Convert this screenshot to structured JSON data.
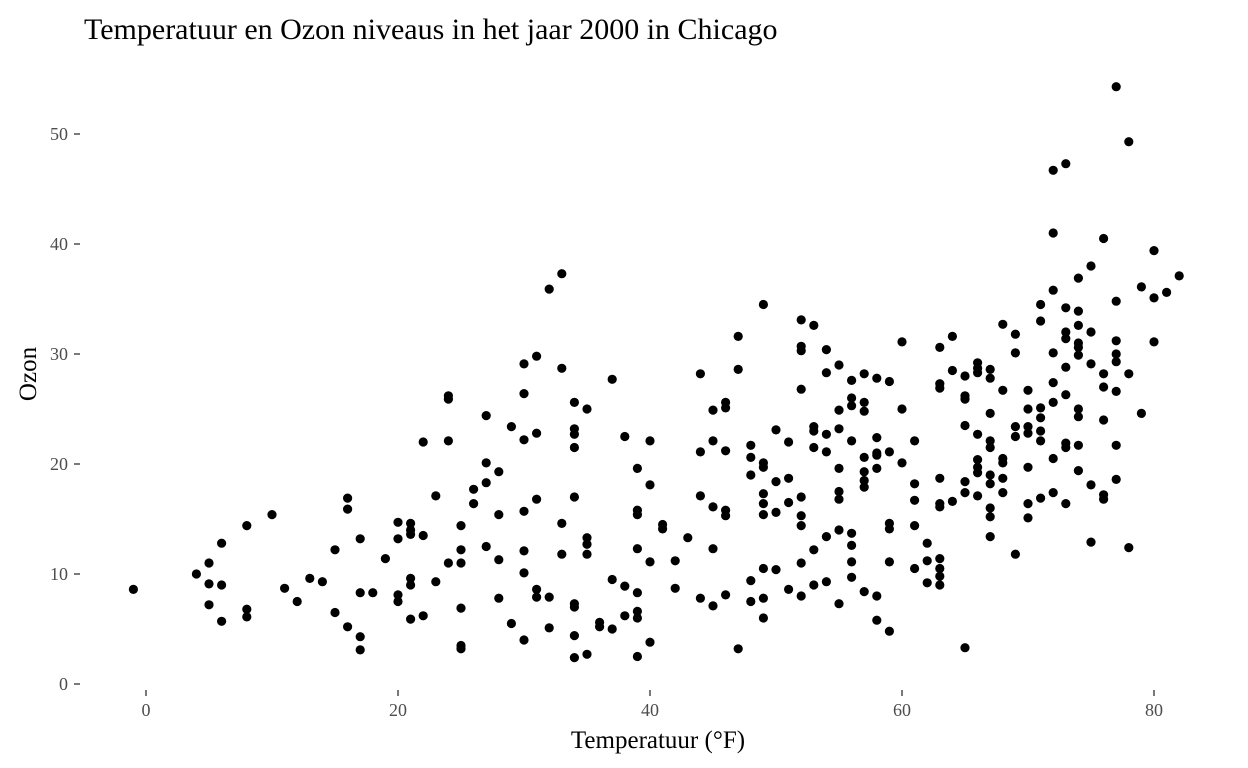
{
  "chart_data": {
    "type": "scatter",
    "title": "Temperatuur en Ozon niveaus in het jaar 2000 in Chicago",
    "xlabel": "Temperatuur (°F)",
    "ylabel": "Ozon",
    "xlim": [
      -6,
      84
    ],
    "ylim": [
      0,
      55
    ],
    "x_ticks": [
      0,
      20,
      40,
      60,
      80
    ],
    "y_ticks": [
      0,
      10,
      20,
      30,
      40,
      50
    ],
    "grid": false,
    "point_color": "#000000",
    "points": [
      {
        "x": -1,
        "y": 8.6
      },
      {
        "x": 4,
        "y": 10.0
      },
      {
        "x": 5,
        "y": 11.0
      },
      {
        "x": 5,
        "y": 9.1
      },
      {
        "x": 5,
        "y": 7.2
      },
      {
        "x": 6,
        "y": 12.8
      },
      {
        "x": 6,
        "y": 9.0
      },
      {
        "x": 6,
        "y": 5.7
      },
      {
        "x": 8,
        "y": 14.4
      },
      {
        "x": 8,
        "y": 6.8
      },
      {
        "x": 8,
        "y": 6.1
      },
      {
        "x": 10,
        "y": 15.4
      },
      {
        "x": 11,
        "y": 8.7
      },
      {
        "x": 12,
        "y": 7.5
      },
      {
        "x": 13,
        "y": 9.6
      },
      {
        "x": 14,
        "y": 9.3
      },
      {
        "x": 15,
        "y": 12.2
      },
      {
        "x": 15,
        "y": 6.5
      },
      {
        "x": 16,
        "y": 16.9
      },
      {
        "x": 16,
        "y": 15.9
      },
      {
        "x": 16,
        "y": 5.2
      },
      {
        "x": 17,
        "y": 13.2
      },
      {
        "x": 17,
        "y": 8.3
      },
      {
        "x": 17,
        "y": 4.3
      },
      {
        "x": 17,
        "y": 3.1
      },
      {
        "x": 18,
        "y": 8.3
      },
      {
        "x": 19,
        "y": 11.4
      },
      {
        "x": 20,
        "y": 14.7
      },
      {
        "x": 20,
        "y": 13.2
      },
      {
        "x": 20,
        "y": 8.1
      },
      {
        "x": 20,
        "y": 7.5
      },
      {
        "x": 21,
        "y": 14.6
      },
      {
        "x": 21,
        "y": 14.0
      },
      {
        "x": 21,
        "y": 13.6
      },
      {
        "x": 21,
        "y": 9.6
      },
      {
        "x": 21,
        "y": 9.0
      },
      {
        "x": 21,
        "y": 5.9
      },
      {
        "x": 22,
        "y": 22.0
      },
      {
        "x": 22,
        "y": 13.5
      },
      {
        "x": 22,
        "y": 6.2
      },
      {
        "x": 23,
        "y": 17.1
      },
      {
        "x": 23,
        "y": 9.3
      },
      {
        "x": 24,
        "y": 26.2
      },
      {
        "x": 24,
        "y": 25.9
      },
      {
        "x": 24,
        "y": 22.1
      },
      {
        "x": 24,
        "y": 11.0
      },
      {
        "x": 25,
        "y": 14.4
      },
      {
        "x": 25,
        "y": 12.2
      },
      {
        "x": 25,
        "y": 11.0
      },
      {
        "x": 25,
        "y": 6.9
      },
      {
        "x": 25,
        "y": 3.5
      },
      {
        "x": 25,
        "y": 3.2
      },
      {
        "x": 26,
        "y": 16.4
      },
      {
        "x": 26,
        "y": 17.7
      },
      {
        "x": 27,
        "y": 24.4
      },
      {
        "x": 27,
        "y": 20.1
      },
      {
        "x": 27,
        "y": 18.3
      },
      {
        "x": 27,
        "y": 12.5
      },
      {
        "x": 28,
        "y": 19.3
      },
      {
        "x": 28,
        "y": 15.4
      },
      {
        "x": 28,
        "y": 11.3
      },
      {
        "x": 28,
        "y": 7.8
      },
      {
        "x": 29,
        "y": 23.4
      },
      {
        "x": 29,
        "y": 5.5
      },
      {
        "x": 30,
        "y": 29.1
      },
      {
        "x": 30,
        "y": 26.4
      },
      {
        "x": 30,
        "y": 22.2
      },
      {
        "x": 30,
        "y": 15.7
      },
      {
        "x": 30,
        "y": 12.1
      },
      {
        "x": 30,
        "y": 10.1
      },
      {
        "x": 30,
        "y": 4.0
      },
      {
        "x": 31,
        "y": 29.8
      },
      {
        "x": 31,
        "y": 22.8
      },
      {
        "x": 31,
        "y": 16.8
      },
      {
        "x": 31,
        "y": 8.6
      },
      {
        "x": 31,
        "y": 7.9
      },
      {
        "x": 32,
        "y": 35.9
      },
      {
        "x": 32,
        "y": 7.9
      },
      {
        "x": 32,
        "y": 5.1
      },
      {
        "x": 33,
        "y": 37.3
      },
      {
        "x": 33,
        "y": 28.7
      },
      {
        "x": 33,
        "y": 14.6
      },
      {
        "x": 33,
        "y": 11.8
      },
      {
        "x": 34,
        "y": 25.6
      },
      {
        "x": 34,
        "y": 23.2
      },
      {
        "x": 34,
        "y": 22.7
      },
      {
        "x": 34,
        "y": 21.5
      },
      {
        "x": 34,
        "y": 17.0
      },
      {
        "x": 34,
        "y": 7.3
      },
      {
        "x": 34,
        "y": 7.0
      },
      {
        "x": 34,
        "y": 4.4
      },
      {
        "x": 34,
        "y": 2.4
      },
      {
        "x": 35,
        "y": 25.0
      },
      {
        "x": 35,
        "y": 13.3
      },
      {
        "x": 35,
        "y": 12.7
      },
      {
        "x": 35,
        "y": 11.8
      },
      {
        "x": 35,
        "y": 2.7
      },
      {
        "x": 36,
        "y": 5.6
      },
      {
        "x": 36,
        "y": 5.2
      },
      {
        "x": 37,
        "y": 27.7
      },
      {
        "x": 37,
        "y": 9.5
      },
      {
        "x": 37,
        "y": 5.0
      },
      {
        "x": 38,
        "y": 22.5
      },
      {
        "x": 38,
        "y": 8.9
      },
      {
        "x": 38,
        "y": 6.2
      },
      {
        "x": 39,
        "y": 19.6
      },
      {
        "x": 39,
        "y": 15.8
      },
      {
        "x": 39,
        "y": 15.4
      },
      {
        "x": 39,
        "y": 12.3
      },
      {
        "x": 39,
        "y": 8.3
      },
      {
        "x": 39,
        "y": 6.6
      },
      {
        "x": 39,
        "y": 6.0
      },
      {
        "x": 39,
        "y": 2.5
      },
      {
        "x": 40,
        "y": 22.1
      },
      {
        "x": 40,
        "y": 18.1
      },
      {
        "x": 40,
        "y": 11.1
      },
      {
        "x": 40,
        "y": 3.8
      },
      {
        "x": 41,
        "y": 14.5
      },
      {
        "x": 41,
        "y": 14.1
      },
      {
        "x": 42,
        "y": 11.2
      },
      {
        "x": 42,
        "y": 8.7
      },
      {
        "x": 43,
        "y": 13.3
      },
      {
        "x": 44,
        "y": 28.2
      },
      {
        "x": 44,
        "y": 21.1
      },
      {
        "x": 44,
        "y": 17.1
      },
      {
        "x": 44,
        "y": 7.8
      },
      {
        "x": 45,
        "y": 24.9
      },
      {
        "x": 45,
        "y": 22.1
      },
      {
        "x": 45,
        "y": 16.1
      },
      {
        "x": 45,
        "y": 12.3
      },
      {
        "x": 45,
        "y": 7.1
      },
      {
        "x": 46,
        "y": 25.6
      },
      {
        "x": 46,
        "y": 25.1
      },
      {
        "x": 46,
        "y": 21.2
      },
      {
        "x": 46,
        "y": 15.8
      },
      {
        "x": 46,
        "y": 15.3
      },
      {
        "x": 46,
        "y": 8.1
      },
      {
        "x": 47,
        "y": 31.6
      },
      {
        "x": 47,
        "y": 28.6
      },
      {
        "x": 47,
        "y": 3.2
      },
      {
        "x": 48,
        "y": 21.7
      },
      {
        "x": 48,
        "y": 20.6
      },
      {
        "x": 48,
        "y": 19.0
      },
      {
        "x": 48,
        "y": 9.4
      },
      {
        "x": 48,
        "y": 7.5
      },
      {
        "x": 49,
        "y": 34.5
      },
      {
        "x": 49,
        "y": 20.1
      },
      {
        "x": 49,
        "y": 19.7
      },
      {
        "x": 49,
        "y": 17.3
      },
      {
        "x": 49,
        "y": 16.4
      },
      {
        "x": 49,
        "y": 15.4
      },
      {
        "x": 49,
        "y": 10.5
      },
      {
        "x": 49,
        "y": 7.8
      },
      {
        "x": 49,
        "y": 6.0
      },
      {
        "x": 50,
        "y": 23.1
      },
      {
        "x": 50,
        "y": 18.4
      },
      {
        "x": 50,
        "y": 15.6
      },
      {
        "x": 50,
        "y": 10.4
      },
      {
        "x": 51,
        "y": 22.0
      },
      {
        "x": 51,
        "y": 18.7
      },
      {
        "x": 51,
        "y": 16.5
      },
      {
        "x": 51,
        "y": 8.6
      },
      {
        "x": 52,
        "y": 33.1
      },
      {
        "x": 52,
        "y": 30.7
      },
      {
        "x": 52,
        "y": 30.3
      },
      {
        "x": 52,
        "y": 26.8
      },
      {
        "x": 52,
        "y": 17.0
      },
      {
        "x": 52,
        "y": 15.3
      },
      {
        "x": 52,
        "y": 14.4
      },
      {
        "x": 52,
        "y": 11.0
      },
      {
        "x": 52,
        "y": 8.0
      },
      {
        "x": 53,
        "y": 32.6
      },
      {
        "x": 53,
        "y": 23.4
      },
      {
        "x": 53,
        "y": 23.0
      },
      {
        "x": 53,
        "y": 21.5
      },
      {
        "x": 53,
        "y": 12.2
      },
      {
        "x": 53,
        "y": 9.0
      },
      {
        "x": 54,
        "y": 30.4
      },
      {
        "x": 54,
        "y": 28.3
      },
      {
        "x": 54,
        "y": 22.7
      },
      {
        "x": 54,
        "y": 21.1
      },
      {
        "x": 54,
        "y": 13.4
      },
      {
        "x": 54,
        "y": 9.3
      },
      {
        "x": 55,
        "y": 29.0
      },
      {
        "x": 55,
        "y": 24.9
      },
      {
        "x": 55,
        "y": 23.2
      },
      {
        "x": 55,
        "y": 19.6
      },
      {
        "x": 55,
        "y": 17.5
      },
      {
        "x": 55,
        "y": 16.8
      },
      {
        "x": 55,
        "y": 14.0
      },
      {
        "x": 55,
        "y": 7.3
      },
      {
        "x": 56,
        "y": 27.6
      },
      {
        "x": 56,
        "y": 26.0
      },
      {
        "x": 56,
        "y": 25.3
      },
      {
        "x": 56,
        "y": 22.1
      },
      {
        "x": 56,
        "y": 13.7
      },
      {
        "x": 56,
        "y": 12.6
      },
      {
        "x": 56,
        "y": 11.1
      },
      {
        "x": 56,
        "y": 9.7
      },
      {
        "x": 57,
        "y": 28.2
      },
      {
        "x": 57,
        "y": 25.6
      },
      {
        "x": 57,
        "y": 24.8
      },
      {
        "x": 57,
        "y": 20.6
      },
      {
        "x": 57,
        "y": 19.3
      },
      {
        "x": 57,
        "y": 18.5
      },
      {
        "x": 57,
        "y": 17.9
      },
      {
        "x": 57,
        "y": 8.4
      },
      {
        "x": 58,
        "y": 27.8
      },
      {
        "x": 58,
        "y": 22.4
      },
      {
        "x": 58,
        "y": 21.0
      },
      {
        "x": 58,
        "y": 20.8
      },
      {
        "x": 58,
        "y": 19.6
      },
      {
        "x": 58,
        "y": 8.0
      },
      {
        "x": 58,
        "y": 5.8
      },
      {
        "x": 59,
        "y": 27.5
      },
      {
        "x": 59,
        "y": 21.1
      },
      {
        "x": 59,
        "y": 14.6
      },
      {
        "x": 59,
        "y": 14.1
      },
      {
        "x": 59,
        "y": 11.1
      },
      {
        "x": 59,
        "y": 4.8
      },
      {
        "x": 60,
        "y": 31.1
      },
      {
        "x": 60,
        "y": 25.0
      },
      {
        "x": 60,
        "y": 20.1
      },
      {
        "x": 61,
        "y": 22.1
      },
      {
        "x": 61,
        "y": 18.2
      },
      {
        "x": 61,
        "y": 16.7
      },
      {
        "x": 61,
        "y": 14.4
      },
      {
        "x": 61,
        "y": 10.5
      },
      {
        "x": 62,
        "y": 12.8
      },
      {
        "x": 62,
        "y": 11.2
      },
      {
        "x": 62,
        "y": 9.2
      },
      {
        "x": 63,
        "y": 30.6
      },
      {
        "x": 63,
        "y": 27.3
      },
      {
        "x": 63,
        "y": 26.9
      },
      {
        "x": 63,
        "y": 18.7
      },
      {
        "x": 63,
        "y": 16.4
      },
      {
        "x": 63,
        "y": 16.1
      },
      {
        "x": 63,
        "y": 11.4
      },
      {
        "x": 63,
        "y": 10.5
      },
      {
        "x": 63,
        "y": 9.8
      },
      {
        "x": 63,
        "y": 9.0
      },
      {
        "x": 64,
        "y": 31.6
      },
      {
        "x": 64,
        "y": 28.5
      },
      {
        "x": 64,
        "y": 16.6
      },
      {
        "x": 65,
        "y": 28.0
      },
      {
        "x": 65,
        "y": 26.2
      },
      {
        "x": 65,
        "y": 25.9
      },
      {
        "x": 65,
        "y": 23.5
      },
      {
        "x": 65,
        "y": 18.4
      },
      {
        "x": 65,
        "y": 17.4
      },
      {
        "x": 65,
        "y": 3.3
      },
      {
        "x": 66,
        "y": 29.2
      },
      {
        "x": 66,
        "y": 28.7
      },
      {
        "x": 66,
        "y": 28.3
      },
      {
        "x": 66,
        "y": 22.7
      },
      {
        "x": 66,
        "y": 20.4
      },
      {
        "x": 66,
        "y": 19.7
      },
      {
        "x": 66,
        "y": 19.2
      },
      {
        "x": 66,
        "y": 17.1
      },
      {
        "x": 67,
        "y": 28.6
      },
      {
        "x": 67,
        "y": 27.8
      },
      {
        "x": 67,
        "y": 24.6
      },
      {
        "x": 67,
        "y": 22.1
      },
      {
        "x": 67,
        "y": 21.5
      },
      {
        "x": 67,
        "y": 19.0
      },
      {
        "x": 67,
        "y": 18.2
      },
      {
        "x": 67,
        "y": 16.0
      },
      {
        "x": 67,
        "y": 15.2
      },
      {
        "x": 67,
        "y": 13.4
      },
      {
        "x": 68,
        "y": 32.7
      },
      {
        "x": 68,
        "y": 26.7
      },
      {
        "x": 68,
        "y": 20.5
      },
      {
        "x": 68,
        "y": 20.1
      },
      {
        "x": 68,
        "y": 18.7
      },
      {
        "x": 68,
        "y": 17.4
      },
      {
        "x": 69,
        "y": 31.8
      },
      {
        "x": 69,
        "y": 30.1
      },
      {
        "x": 69,
        "y": 23.4
      },
      {
        "x": 69,
        "y": 22.5
      },
      {
        "x": 69,
        "y": 11.8
      },
      {
        "x": 70,
        "y": 26.7
      },
      {
        "x": 70,
        "y": 25.0
      },
      {
        "x": 70,
        "y": 23.4
      },
      {
        "x": 70,
        "y": 22.8
      },
      {
        "x": 70,
        "y": 19.7
      },
      {
        "x": 70,
        "y": 16.4
      },
      {
        "x": 70,
        "y": 15.1
      },
      {
        "x": 71,
        "y": 34.5
      },
      {
        "x": 71,
        "y": 33.0
      },
      {
        "x": 71,
        "y": 25.1
      },
      {
        "x": 71,
        "y": 24.2
      },
      {
        "x": 71,
        "y": 23.0
      },
      {
        "x": 71,
        "y": 22.1
      },
      {
        "x": 71,
        "y": 16.9
      },
      {
        "x": 72,
        "y": 46.7
      },
      {
        "x": 72,
        "y": 41.0
      },
      {
        "x": 72,
        "y": 35.8
      },
      {
        "x": 72,
        "y": 30.1
      },
      {
        "x": 72,
        "y": 27.4
      },
      {
        "x": 72,
        "y": 25.6
      },
      {
        "x": 72,
        "y": 20.5
      },
      {
        "x": 72,
        "y": 17.4
      },
      {
        "x": 73,
        "y": 47.3
      },
      {
        "x": 73,
        "y": 34.2
      },
      {
        "x": 73,
        "y": 32.0
      },
      {
        "x": 73,
        "y": 31.4
      },
      {
        "x": 73,
        "y": 28.8
      },
      {
        "x": 73,
        "y": 26.3
      },
      {
        "x": 73,
        "y": 21.9
      },
      {
        "x": 73,
        "y": 21.5
      },
      {
        "x": 73,
        "y": 16.4
      },
      {
        "x": 74,
        "y": 36.9
      },
      {
        "x": 74,
        "y": 33.9
      },
      {
        "x": 74,
        "y": 32.6
      },
      {
        "x": 74,
        "y": 31.0
      },
      {
        "x": 74,
        "y": 30.6
      },
      {
        "x": 74,
        "y": 29.9
      },
      {
        "x": 74,
        "y": 25.0
      },
      {
        "x": 74,
        "y": 24.3
      },
      {
        "x": 74,
        "y": 21.7
      },
      {
        "x": 74,
        "y": 19.4
      },
      {
        "x": 75,
        "y": 38.0
      },
      {
        "x": 75,
        "y": 32.0
      },
      {
        "x": 75,
        "y": 29.1
      },
      {
        "x": 75,
        "y": 18.1
      },
      {
        "x": 75,
        "y": 12.9
      },
      {
        "x": 76,
        "y": 40.5
      },
      {
        "x": 76,
        "y": 28.2
      },
      {
        "x": 76,
        "y": 27.0
      },
      {
        "x": 76,
        "y": 24.0
      },
      {
        "x": 76,
        "y": 17.2
      },
      {
        "x": 76,
        "y": 16.8
      },
      {
        "x": 77,
        "y": 54.3
      },
      {
        "x": 77,
        "y": 34.8
      },
      {
        "x": 77,
        "y": 31.2
      },
      {
        "x": 77,
        "y": 30.0
      },
      {
        "x": 77,
        "y": 29.3
      },
      {
        "x": 77,
        "y": 26.6
      },
      {
        "x": 77,
        "y": 21.7
      },
      {
        "x": 77,
        "y": 18.6
      },
      {
        "x": 78,
        "y": 49.3
      },
      {
        "x": 78,
        "y": 28.2
      },
      {
        "x": 78,
        "y": 12.4
      },
      {
        "x": 79,
        "y": 36.1
      },
      {
        "x": 79,
        "y": 24.6
      },
      {
        "x": 80,
        "y": 39.4
      },
      {
        "x": 80,
        "y": 35.1
      },
      {
        "x": 80,
        "y": 31.1
      },
      {
        "x": 81,
        "y": 35.6
      },
      {
        "x": 82,
        "y": 37.1
      }
    ]
  }
}
